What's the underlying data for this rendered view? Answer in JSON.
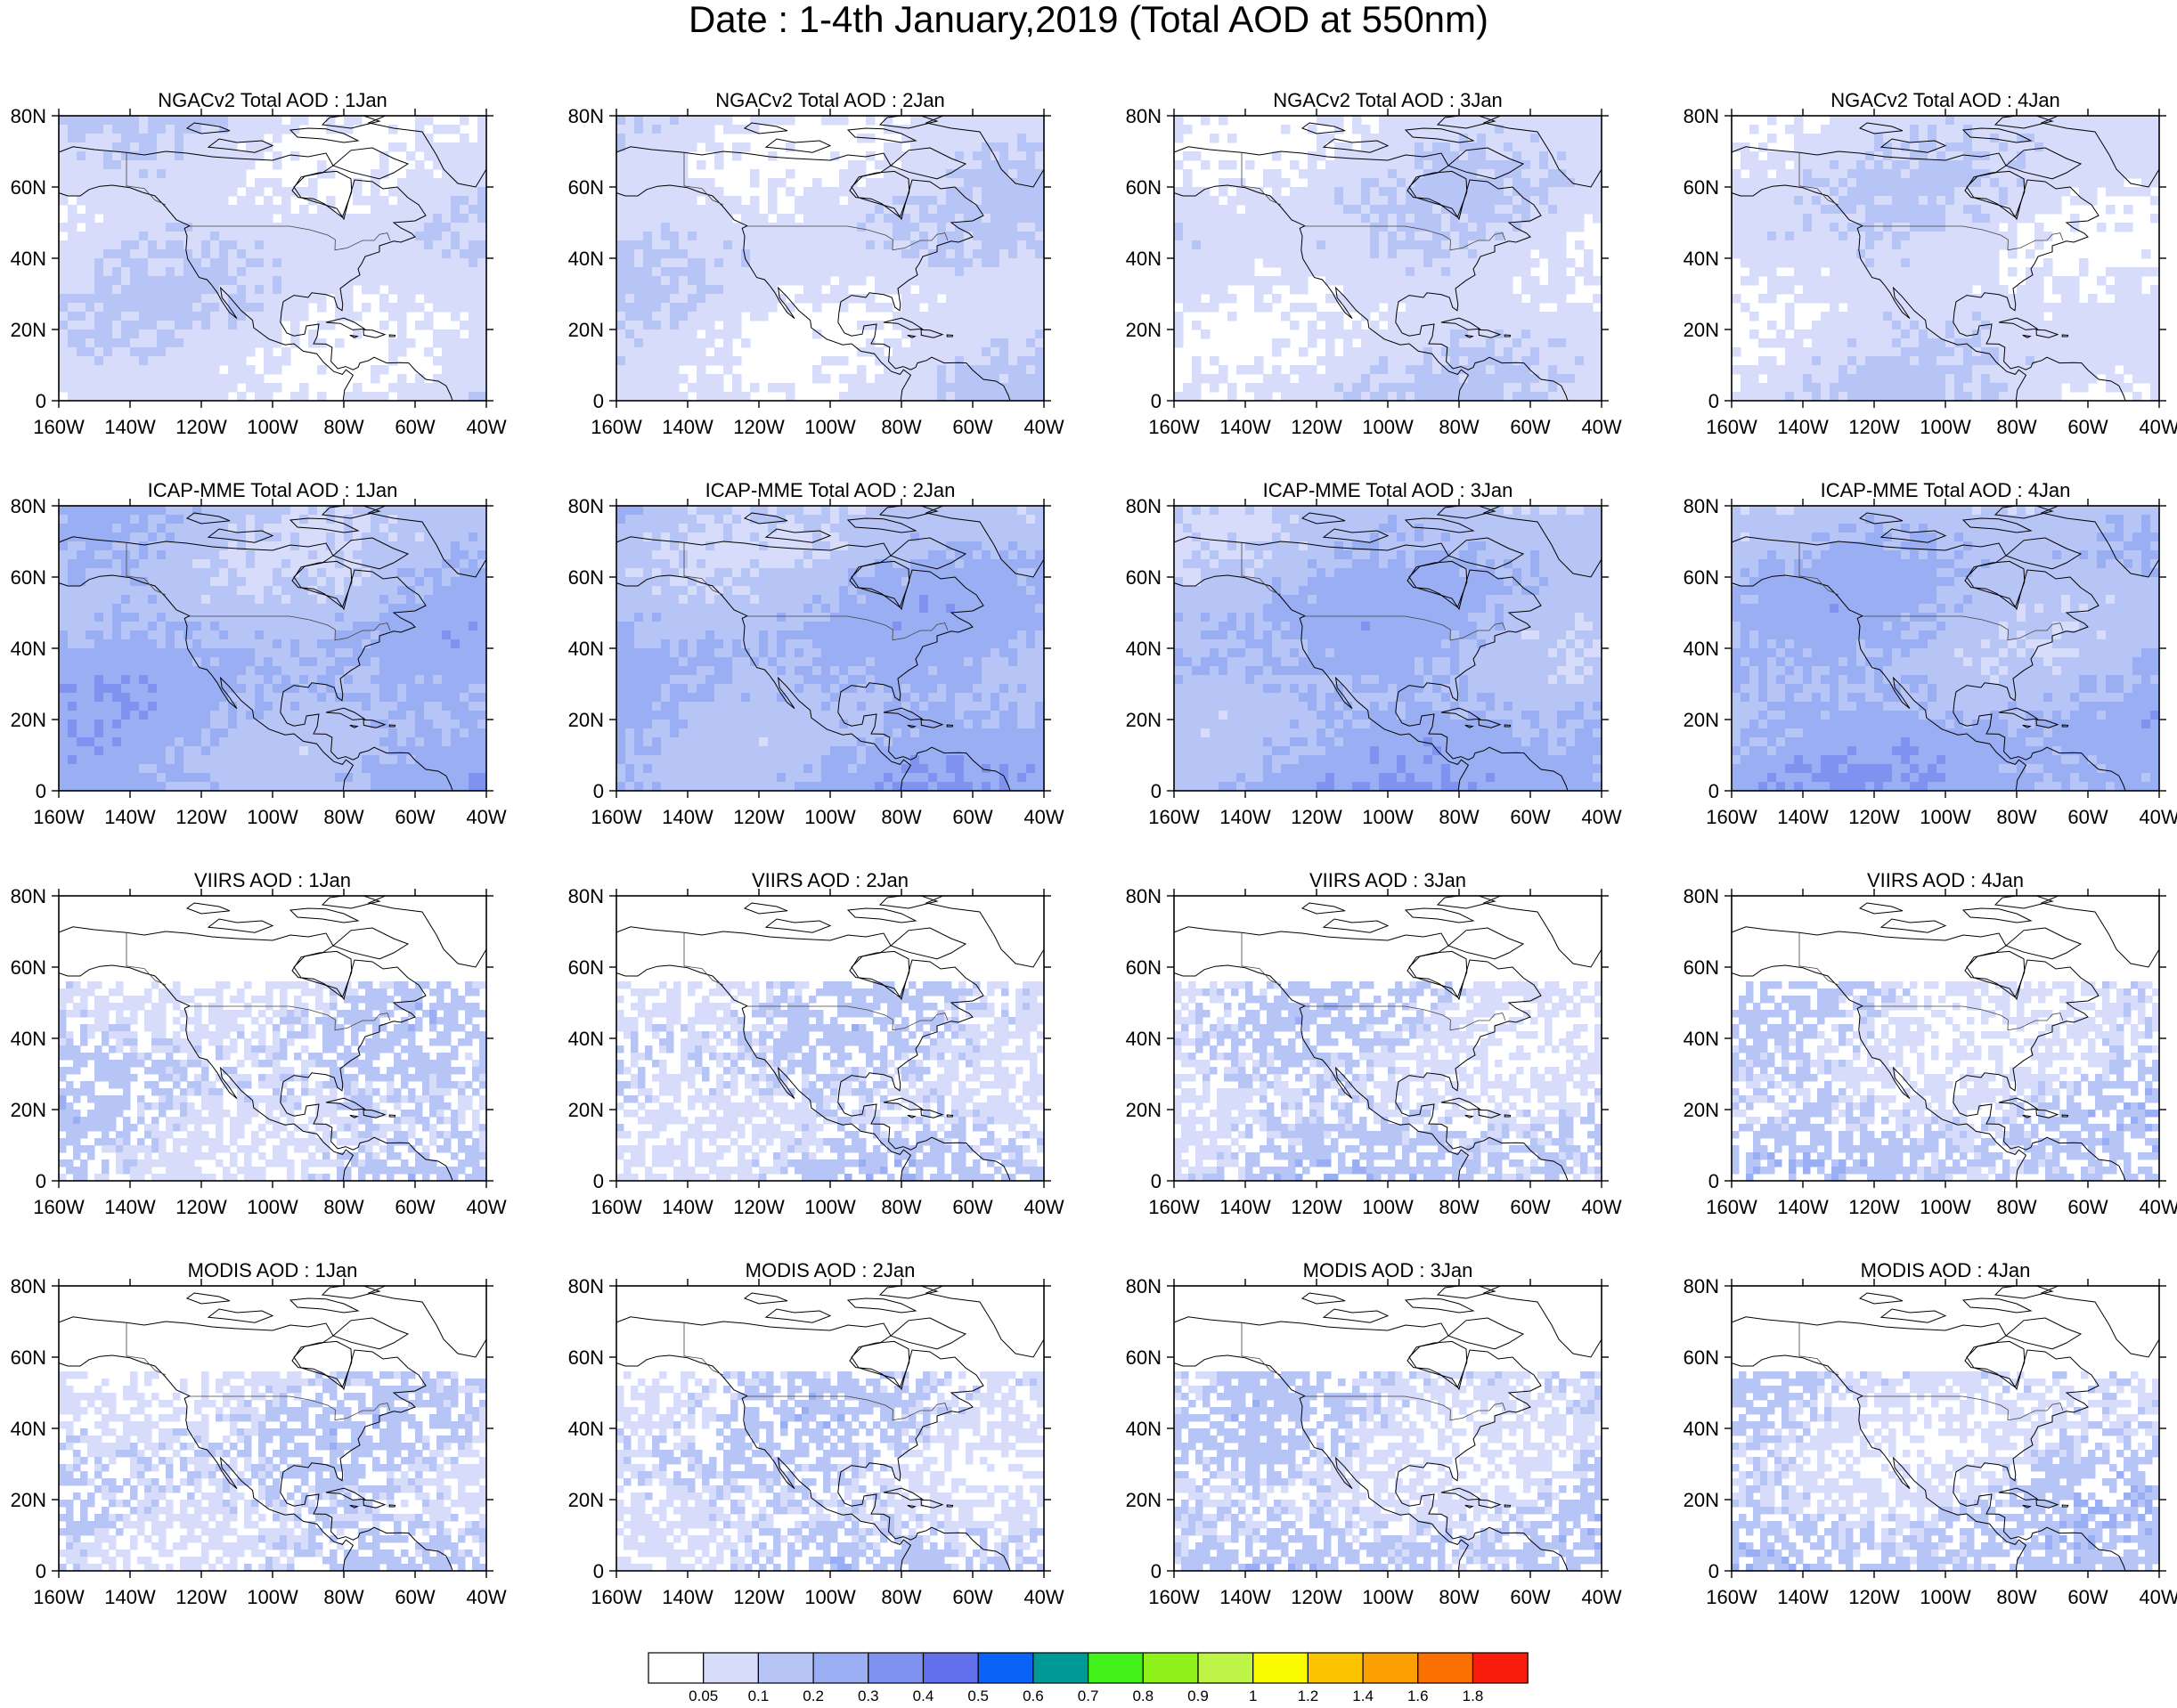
{
  "title": "Date : 1-4th January,2019 (Total AOD at 550nm)",
  "map": {
    "lon_range": [
      -160,
      -40
    ],
    "lat_range": [
      0,
      80
    ],
    "x_tick_labels": [
      "160W",
      "140W",
      "120W",
      "100W",
      "80W",
      "60W",
      "40W"
    ],
    "y_tick_labels": [
      "0",
      "20N",
      "40N",
      "60N",
      "80N"
    ]
  },
  "rows": [
    {
      "dataset": "NGACv2",
      "titles": [
        "NGACv2 Total AOD : 1Jan",
        "NGACv2 Total AOD : 2Jan",
        "NGACv2 Total AOD : 3Jan",
        "NGACv2 Total AOD : 4Jan"
      ],
      "mean_level": [
        1,
        1,
        1,
        1
      ]
    },
    {
      "dataset": "ICAP-MME",
      "titles": [
        "ICAP-MME Total AOD : 1Jan",
        "ICAP-MME Total AOD : 2Jan",
        "ICAP-MME Total AOD : 3Jan",
        "ICAP-MME Total AOD : 4Jan"
      ],
      "mean_level": [
        2,
        2,
        2,
        2
      ]
    },
    {
      "dataset": "VIIRS",
      "titles": [
        "VIIRS AOD : 1Jan",
        "VIIRS AOD : 2Jan",
        "VIIRS AOD : 3Jan",
        "VIIRS AOD : 4Jan"
      ],
      "mean_level": [
        1,
        1,
        1,
        1
      ]
    },
    {
      "dataset": "MODIS",
      "titles": [
        "MODIS AOD : 1Jan",
        "MODIS AOD : 2Jan",
        "MODIS AOD : 3Jan",
        "MODIS AOD : 4Jan"
      ],
      "mean_level": [
        1,
        1,
        1,
        1
      ]
    }
  ],
  "colorbar": {
    "labels": [
      "0.05",
      "0.1",
      "0.2",
      "0.3",
      "0.4",
      "0.5",
      "0.6",
      "0.7",
      "0.8",
      "0.9",
      "1",
      "1.2",
      "1.4",
      "1.6",
      "1.8"
    ],
    "colors": [
      "#ffffff",
      "#d6dcfa",
      "#b7c4f6",
      "#9aaef3",
      "#7f92ef",
      "#6270ec",
      "#0b62f6",
      "#009a96",
      "#42f21a",
      "#8ef21a",
      "#bdf447",
      "#fbfb00",
      "#fbc300",
      "#fb9f00",
      "#fb7000",
      "#f81d0c"
    ]
  }
}
